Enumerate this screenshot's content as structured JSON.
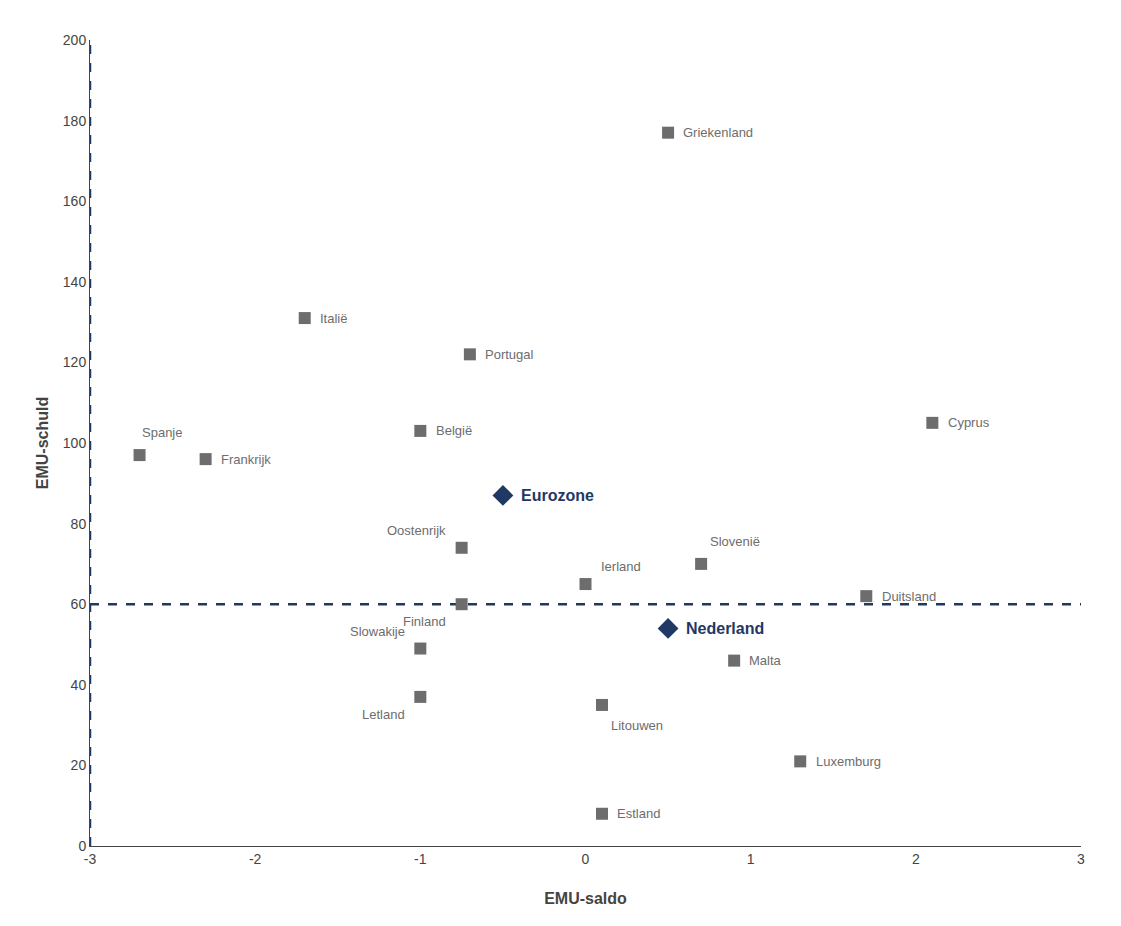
{
  "chart_data": {
    "type": "scatter",
    "xlabel": "EMU-saldo",
    "ylabel": "EMU-schuld",
    "xlim": [
      -3,
      3
    ],
    "ylim": [
      0,
      200
    ],
    "xticks": [
      -3,
      -2,
      -1,
      0,
      1,
      2,
      3
    ],
    "yticks": [
      0,
      20,
      40,
      60,
      80,
      100,
      120,
      140,
      160,
      180,
      200
    ],
    "grid": false,
    "series": [
      {
        "color": "#6d6d6d",
        "marker": "square",
        "labels": [
          "Griekenland",
          "Italië",
          "Portugal",
          "België",
          "Spanje",
          "Frankrijk",
          "Cyprus",
          "Oostenrijk",
          "Ierland",
          "Slovenië",
          "Finland",
          "Duitsland",
          "Slowakije",
          "Letland",
          "Malta",
          "Litouwen",
          "Luxemburg",
          "Estland"
        ],
        "x": [
          0.5,
          -1.7,
          -0.7,
          -1.0,
          -2.7,
          -2.3,
          2.1,
          -0.75,
          0.0,
          0.7,
          -0.75,
          1.7,
          -1.0,
          -1.0,
          0.9,
          0.1,
          1.3,
          0.1
        ],
        "y": [
          177,
          131,
          122,
          103,
          97,
          96,
          105,
          74,
          65,
          70,
          60,
          62,
          49,
          37,
          46,
          35,
          21,
          8
        ]
      },
      {
        "color": "#1f3864",
        "marker": "diamond",
        "labels": [
          "Eurozone",
          "Nederland"
        ],
        "x": [
          -0.5,
          0.5
        ],
        "y": [
          87,
          54
        ]
      }
    ],
    "reference_lines": [
      {
        "axis": "y",
        "value": 60,
        "color": "#1f3864",
        "line_style": "dashed"
      },
      {
        "axis": "x",
        "value": -3,
        "color": "#1f3864",
        "line_style": "dashed"
      }
    ]
  }
}
